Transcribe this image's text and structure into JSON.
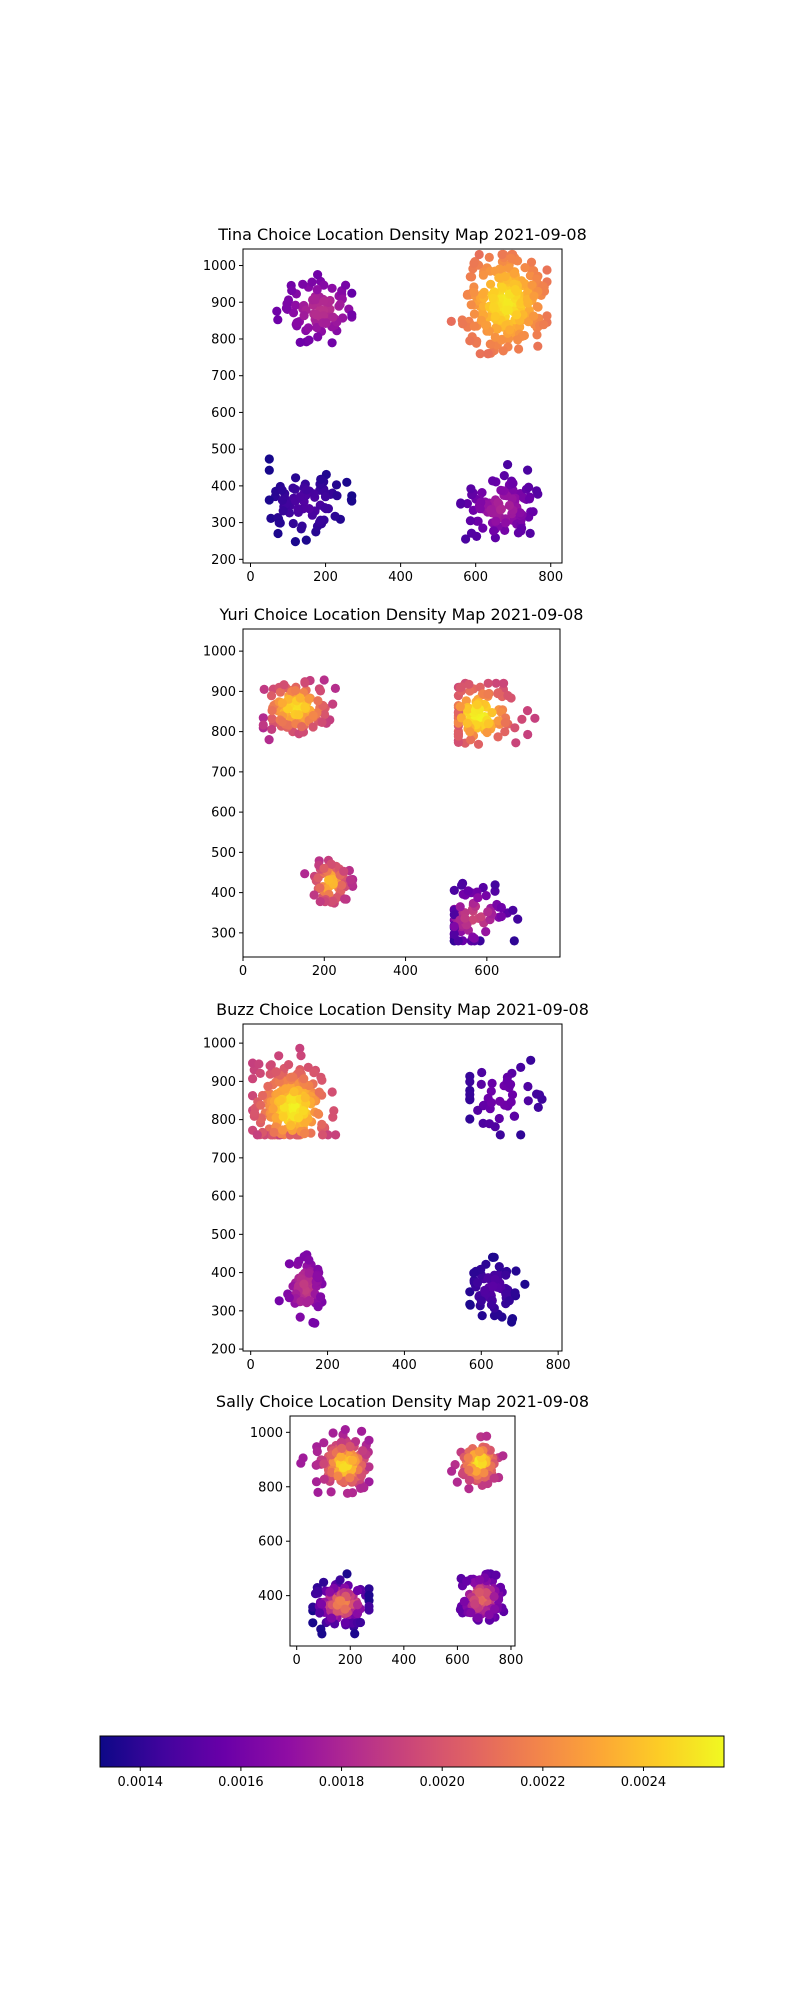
{
  "colorbar": {
    "min": 0.00132,
    "max": 0.00256,
    "colormap": "plasma",
    "ticks": [
      0.0014,
      0.0016,
      0.0018,
      0.002,
      0.0022,
      0.0024
    ],
    "tick_labels": [
      "0.0014",
      "0.0016",
      "0.0018",
      "0.0020",
      "0.0022",
      "0.0024"
    ]
  },
  "chart_data": [
    {
      "type": "scatter",
      "title": "Tina Choice Location Density Map 2021-09-08",
      "xlim": [
        -20,
        830
      ],
      "ylim": [
        190,
        1045
      ],
      "xticks": [
        0,
        200,
        400,
        600,
        800
      ],
      "yticks": [
        200,
        300,
        400,
        500,
        600,
        700,
        800,
        900,
        1000
      ],
      "clusters": [
        {
          "center": [
            190,
            880
          ],
          "spread": [
            55,
            45
          ],
          "count": 85,
          "density": [
            0.00155,
            0.00185
          ],
          "bounds": [
            [
              5,
              270
            ],
            [
              770,
              1000
            ]
          ]
        },
        {
          "center": [
            680,
            900
          ],
          "spread": [
            55,
            65
          ],
          "count": 260,
          "density": [
            0.0021,
            0.00252
          ],
          "bounds": [
            [
              535,
              790
            ],
            [
              760,
              1030
            ]
          ]
        },
        {
          "center": [
            150,
            350
          ],
          "spread": [
            55,
            45
          ],
          "count": 80,
          "density": [
            0.00134,
            0.0015
          ],
          "bounds": [
            [
              50,
              270
            ],
            [
              245,
              480
            ]
          ]
        },
        {
          "center": [
            670,
            340
          ],
          "spread": [
            50,
            45
          ],
          "count": 95,
          "density": [
            0.00146,
            0.0018
          ],
          "bounds": [
            [
              560,
              780
            ],
            [
              230,
              495
            ]
          ]
        }
      ]
    },
    {
      "type": "scatter",
      "title": "Yuri Choice Location Density Map 2021-09-08",
      "xlim": [
        0,
        780
      ],
      "ylim": [
        240,
        1055
      ],
      "xticks": [
        0,
        200,
        400,
        600
      ],
      "yticks": [
        300,
        400,
        500,
        600,
        700,
        800,
        900,
        1000
      ],
      "clusters": [
        {
          "center": [
            130,
            860
          ],
          "spread": [
            45,
            35
          ],
          "count": 120,
          "density": [
            0.0018,
            0.0025
          ],
          "bounds": [
            [
              50,
              260
            ],
            [
              765,
              1010
            ]
          ]
        },
        {
          "center": [
            580,
            840
          ],
          "spread": [
            45,
            40
          ],
          "count": 110,
          "density": [
            0.0019,
            0.00255
          ],
          "bounds": [
            [
              530,
              740
            ],
            [
              760,
              920
            ]
          ]
        },
        {
          "center": [
            215,
            425
          ],
          "spread": [
            22,
            28
          ],
          "count": 70,
          "density": [
            0.0018,
            0.0024
          ],
          "bounds": [
            [
              30,
              270
            ],
            [
              330,
              485
            ]
          ]
        },
        {
          "center": [
            570,
            340
          ],
          "spread": [
            45,
            40
          ],
          "count": 70,
          "density": [
            0.0014,
            0.00195
          ],
          "bounds": [
            [
              520,
              745
            ],
            [
              280,
              485
            ]
          ]
        }
      ]
    },
    {
      "type": "scatter",
      "title": "Buzz Choice Location Density Map 2021-09-08",
      "xlim": [
        -20,
        810
      ],
      "ylim": [
        195,
        1050
      ],
      "xticks": [
        0,
        200,
        400,
        600,
        800
      ],
      "yticks": [
        200,
        300,
        400,
        500,
        600,
        700,
        800,
        900,
        1000
      ],
      "clusters": [
        {
          "center": [
            110,
            830
          ],
          "spread": [
            50,
            55
          ],
          "count": 230,
          "density": [
            0.0019,
            0.00255
          ],
          "bounds": [
            [
              5,
              265
            ],
            [
              760,
              1010
            ]
          ]
        },
        {
          "center": [
            650,
            860
          ],
          "spread": [
            55,
            60
          ],
          "count": 45,
          "density": [
            0.0014,
            0.0016
          ],
          "bounds": [
            [
              570,
              770
            ],
            [
              760,
              970
            ]
          ]
        },
        {
          "center": [
            140,
            360
          ],
          "spread": [
            22,
            38
          ],
          "count": 75,
          "density": [
            0.0016,
            0.0019
          ],
          "bounds": [
            [
              55,
              200
            ],
            [
              260,
              490
            ]
          ]
        },
        {
          "center": [
            630,
            360
          ],
          "spread": [
            35,
            38
          ],
          "count": 70,
          "density": [
            0.00135,
            0.00152
          ],
          "bounds": [
            [
              570,
              720
            ],
            [
              235,
              440
            ]
          ]
        }
      ]
    },
    {
      "type": "scatter",
      "title": "Sally Choice Location Density Map 2021-09-08",
      "xlim": [
        -25,
        815
      ],
      "ylim": [
        215,
        1060
      ],
      "xticks": [
        0,
        200,
        400,
        600,
        800
      ],
      "yticks": [
        400,
        600,
        800,
        1000
      ],
      "clusters": [
        {
          "center": [
            180,
            880
          ],
          "spread": [
            45,
            45
          ],
          "count": 170,
          "density": [
            0.00175,
            0.0025
          ],
          "bounds": [
            [
              0,
              270
            ],
            [
              770,
              1010
            ]
          ]
        },
        {
          "center": [
            680,
            890
          ],
          "spread": [
            35,
            40
          ],
          "count": 100,
          "density": [
            0.0018,
            0.00252
          ],
          "bounds": [
            [
              550,
              770
            ],
            [
              770,
              1000
            ]
          ]
        },
        {
          "center": [
            170,
            370
          ],
          "spread": [
            50,
            40
          ],
          "count": 130,
          "density": [
            0.00134,
            0.0022
          ],
          "bounds": [
            [
              60,
              270
            ],
            [
              255,
              480
            ]
          ]
        },
        {
          "center": [
            690,
            390
          ],
          "spread": [
            35,
            40
          ],
          "count": 110,
          "density": [
            0.0015,
            0.0021
          ],
          "bounds": [
            [
              600,
              780
            ],
            [
              310,
              480
            ]
          ]
        }
      ]
    }
  ]
}
